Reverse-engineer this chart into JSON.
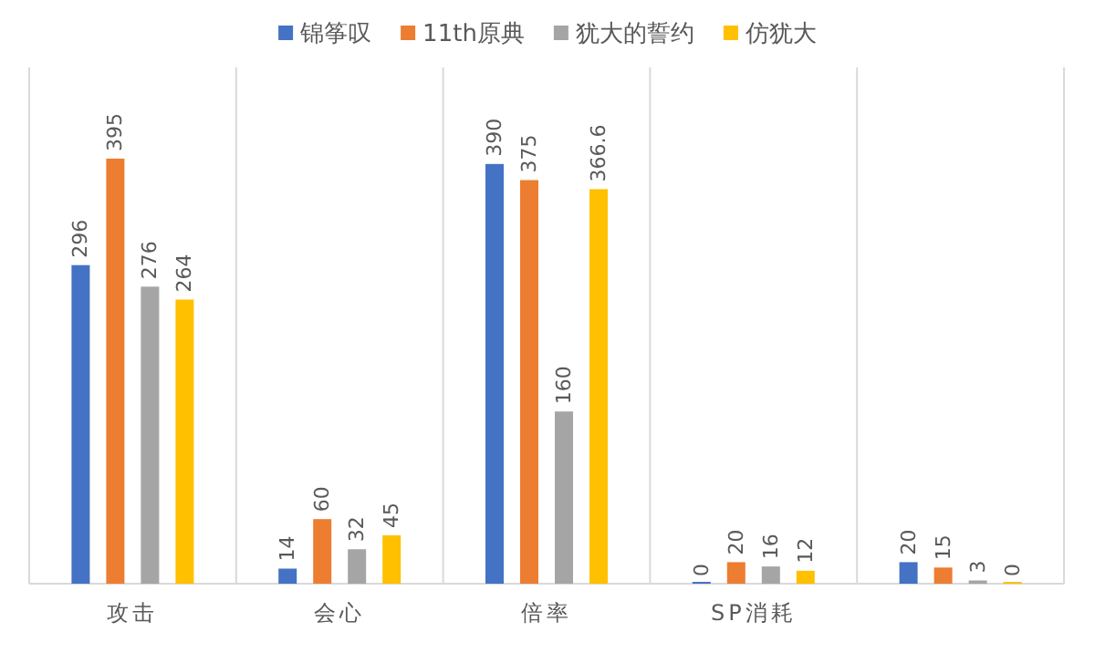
{
  "chart_data": {
    "type": "bar",
    "categories": [
      "攻击",
      "会心",
      "倍率",
      "SP消耗",
      null
    ],
    "series": [
      {
        "name": "锦筝叹",
        "color": "#4472c4",
        "values": [
          296,
          14,
          390,
          0,
          20
        ]
      },
      {
        "name": "11th原典",
        "color": "#ed7d31",
        "values": [
          395,
          60,
          375,
          20,
          15
        ]
      },
      {
        "name": "犹大的誓约",
        "color": "#a5a5a5",
        "values": [
          276,
          32,
          160,
          16,
          3
        ]
      },
      {
        "name": "仿犹大",
        "color": "#ffc000",
        "values": [
          264,
          45,
          366.6,
          12,
          0
        ]
      }
    ],
    "data_labels": true,
    "legend": "top",
    "grid": "x"
  }
}
